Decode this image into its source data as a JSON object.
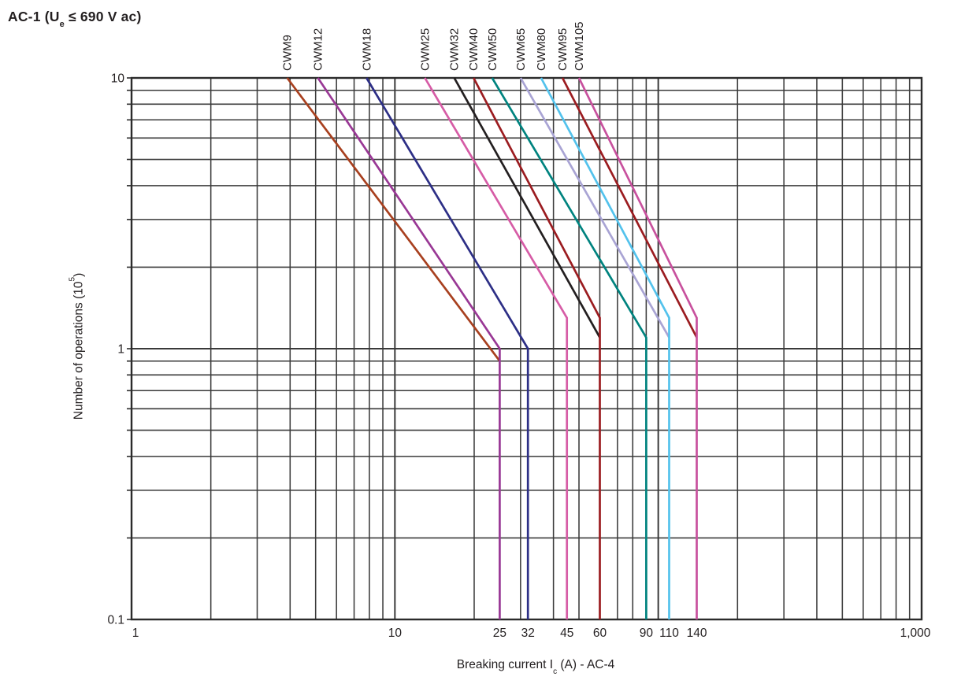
{
  "title": {
    "prefix": "AC-1 (U",
    "sub": "e",
    "suffix": " ≤ 690 V ac)"
  },
  "axes": {
    "x": {
      "label_prefix": "Breaking current I",
      "label_sub": "c",
      "label_suffix": " (A) - AC-4",
      "scale": "log",
      "min": 1,
      "max": 1000,
      "ticks": [
        {
          "value": 1,
          "label": "1"
        },
        {
          "value": 10,
          "label": "10"
        },
        {
          "value": 1000,
          "label": "1,000"
        }
      ],
      "breaking_current_ticks": [
        {
          "value": 25,
          "label": "25"
        },
        {
          "value": 32,
          "label": "32"
        },
        {
          "value": 45,
          "label": "45"
        },
        {
          "value": 60,
          "label": "60"
        },
        {
          "value": 90,
          "label": "90"
        },
        {
          "value": 110,
          "label": "110"
        },
        {
          "value": 140,
          "label": "140"
        }
      ]
    },
    "y": {
      "label_prefix": "Number of operations (10",
      "label_sup": "5",
      "label_suffix": ")",
      "scale": "log",
      "min": 0.1,
      "max": 10,
      "ticks": [
        {
          "value": 10,
          "label": "10"
        },
        {
          "value": 1,
          "label": "1"
        },
        {
          "value": 0.1,
          "label": "0.1"
        }
      ]
    }
  },
  "chart_data": {
    "type": "line",
    "title": "AC-1 (Ue ≤ 690 V ac)",
    "xlabel": "Breaking current Ic (A) - AC-4",
    "ylabel": "Number of operations (10^5)",
    "xscale": "log",
    "yscale": "log",
    "xlim": [
      1,
      1000
    ],
    "ylim": [
      0.1,
      10
    ],
    "grid": true,
    "grid_color": "#3A3A3A",
    "border_color": "#2B2B2B",
    "text_color": "#231F20",
    "series": [
      {
        "name": "CWM9",
        "color": "#A8401F",
        "points": [
          [
            3.9,
            10
          ],
          [
            25,
            0.9
          ]
        ]
      },
      {
        "name": "CWM12",
        "color": "#993895",
        "points": [
          [
            5.1,
            10
          ],
          [
            25,
            1.0
          ],
          [
            25,
            0.1
          ]
        ]
      },
      {
        "name": "CWM18",
        "color": "#2D2F86",
        "points": [
          [
            7.8,
            10
          ],
          [
            32,
            1.0
          ],
          [
            32,
            0.1
          ]
        ]
      },
      {
        "name": "CWM25",
        "color": "#D65CA6",
        "points": [
          [
            13,
            10
          ],
          [
            45,
            1.3
          ],
          [
            45,
            0.1
          ]
        ]
      },
      {
        "name": "CWM32",
        "color": "#231F20",
        "points": [
          [
            16.8,
            10
          ],
          [
            60,
            1.1
          ]
        ]
      },
      {
        "name": "CWM40",
        "color": "#9B1C20",
        "points": [
          [
            19.9,
            10
          ],
          [
            60,
            1.3
          ],
          [
            60,
            0.1
          ]
        ]
      },
      {
        "name": "CWM50",
        "color": "#00837F",
        "points": [
          [
            23.4,
            10
          ],
          [
            90,
            1.1
          ],
          [
            90,
            0.1
          ]
        ]
      },
      {
        "name": "CWM65",
        "color": "#A9A4D4",
        "points": [
          [
            30,
            10
          ],
          [
            110,
            1.1
          ]
        ]
      },
      {
        "name": "CWM80",
        "color": "#53C2EC",
        "points": [
          [
            35.9,
            10
          ],
          [
            110,
            1.3
          ],
          [
            110,
            0.1
          ]
        ]
      },
      {
        "name": "CWM95",
        "color": "#9B1C20",
        "points": [
          [
            43.3,
            10
          ],
          [
            140,
            1.1
          ]
        ]
      },
      {
        "name": "CWM105",
        "color": "#C8519E",
        "points": [
          [
            50,
            10
          ],
          [
            140,
            1.3
          ],
          [
            140,
            0.1
          ]
        ]
      }
    ]
  }
}
